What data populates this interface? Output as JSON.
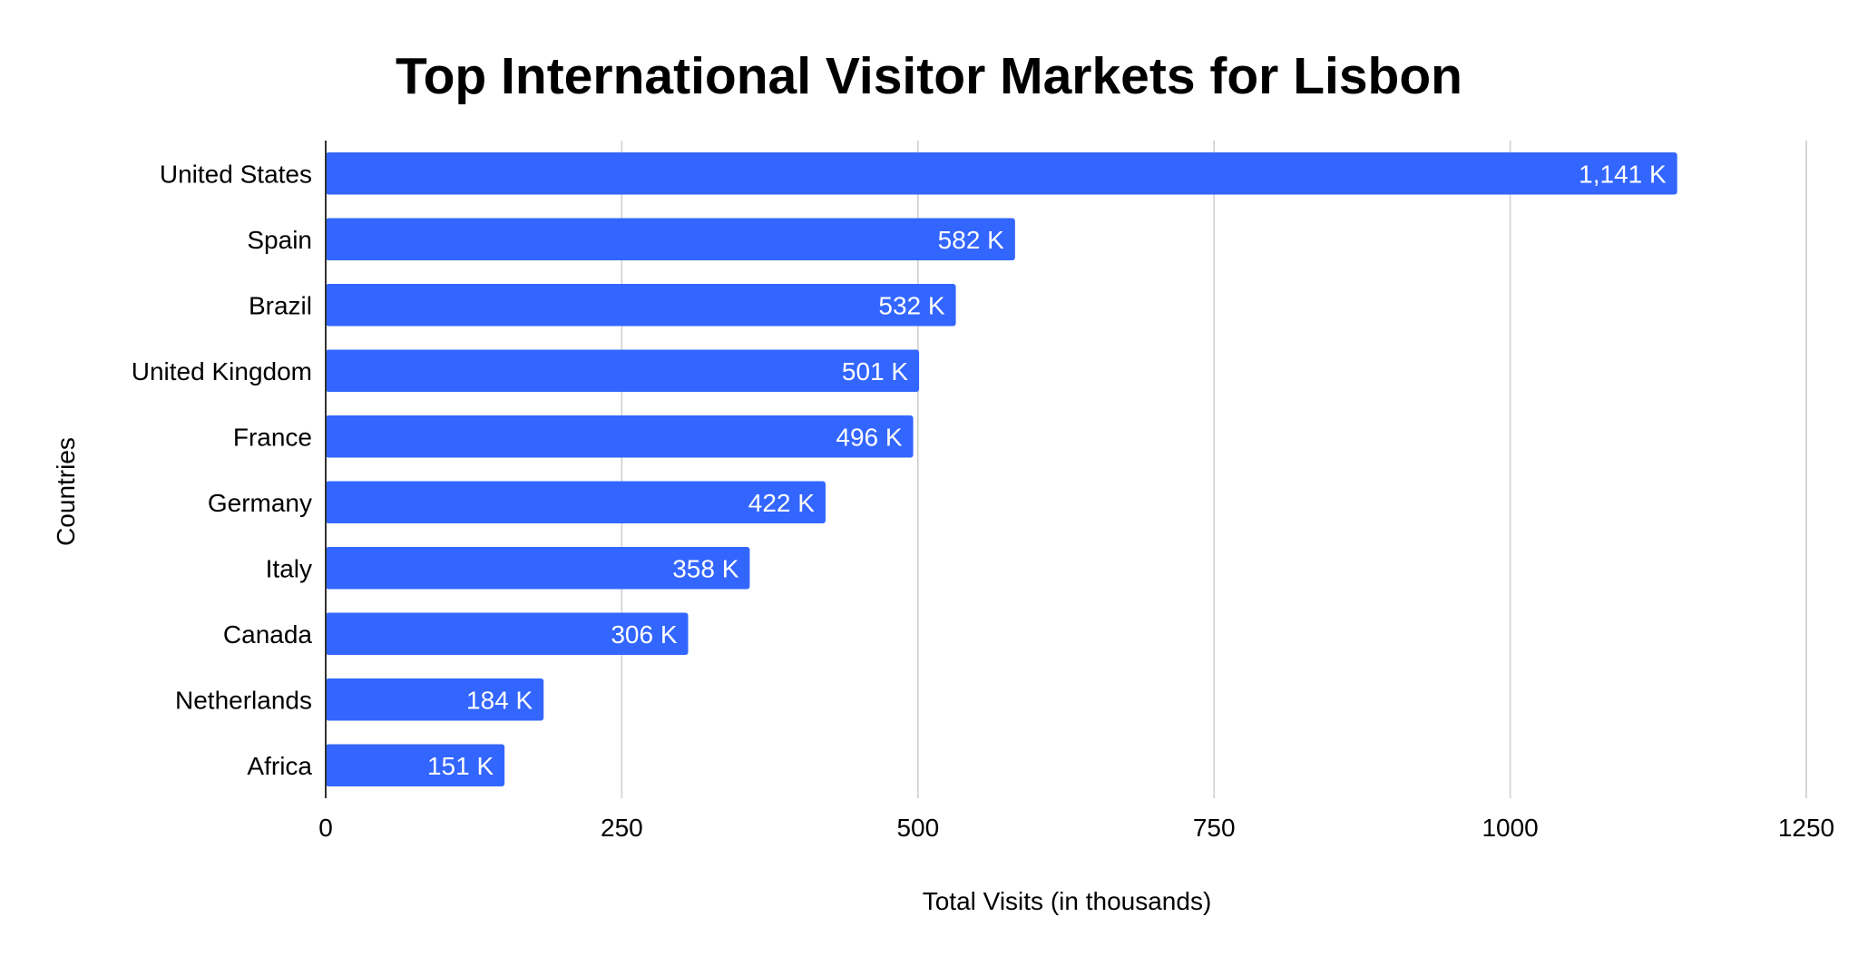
{
  "chart_data": {
    "type": "bar",
    "orientation": "horizontal",
    "title": "Top International Visitor Markets for Lisbon",
    "xlabel": "Total Visits (in thousands)",
    "ylabel": "Countries",
    "categories": [
      "United States",
      "Spain",
      "Brazil",
      "United Kingdom",
      "France",
      "Germany",
      "Italy",
      "Canada",
      "Netherlands",
      "Africa"
    ],
    "values": [
      1141,
      582,
      532,
      501,
      496,
      422,
      358,
      306,
      184,
      151
    ],
    "data_labels": [
      "1,141 K",
      "582 K",
      "532 K",
      "501 K",
      "496 K",
      "422 K",
      "358 K",
      "306 K",
      "184 K",
      "151 K"
    ],
    "xlim": [
      0,
      1250
    ],
    "xticks": [
      0,
      250,
      500,
      750,
      1000,
      1250
    ],
    "xtick_labels": [
      "0",
      "250",
      "500",
      "750",
      "1000",
      "1250"
    ],
    "grid": true,
    "legend": "none",
    "bar_color": "#3366ff"
  }
}
